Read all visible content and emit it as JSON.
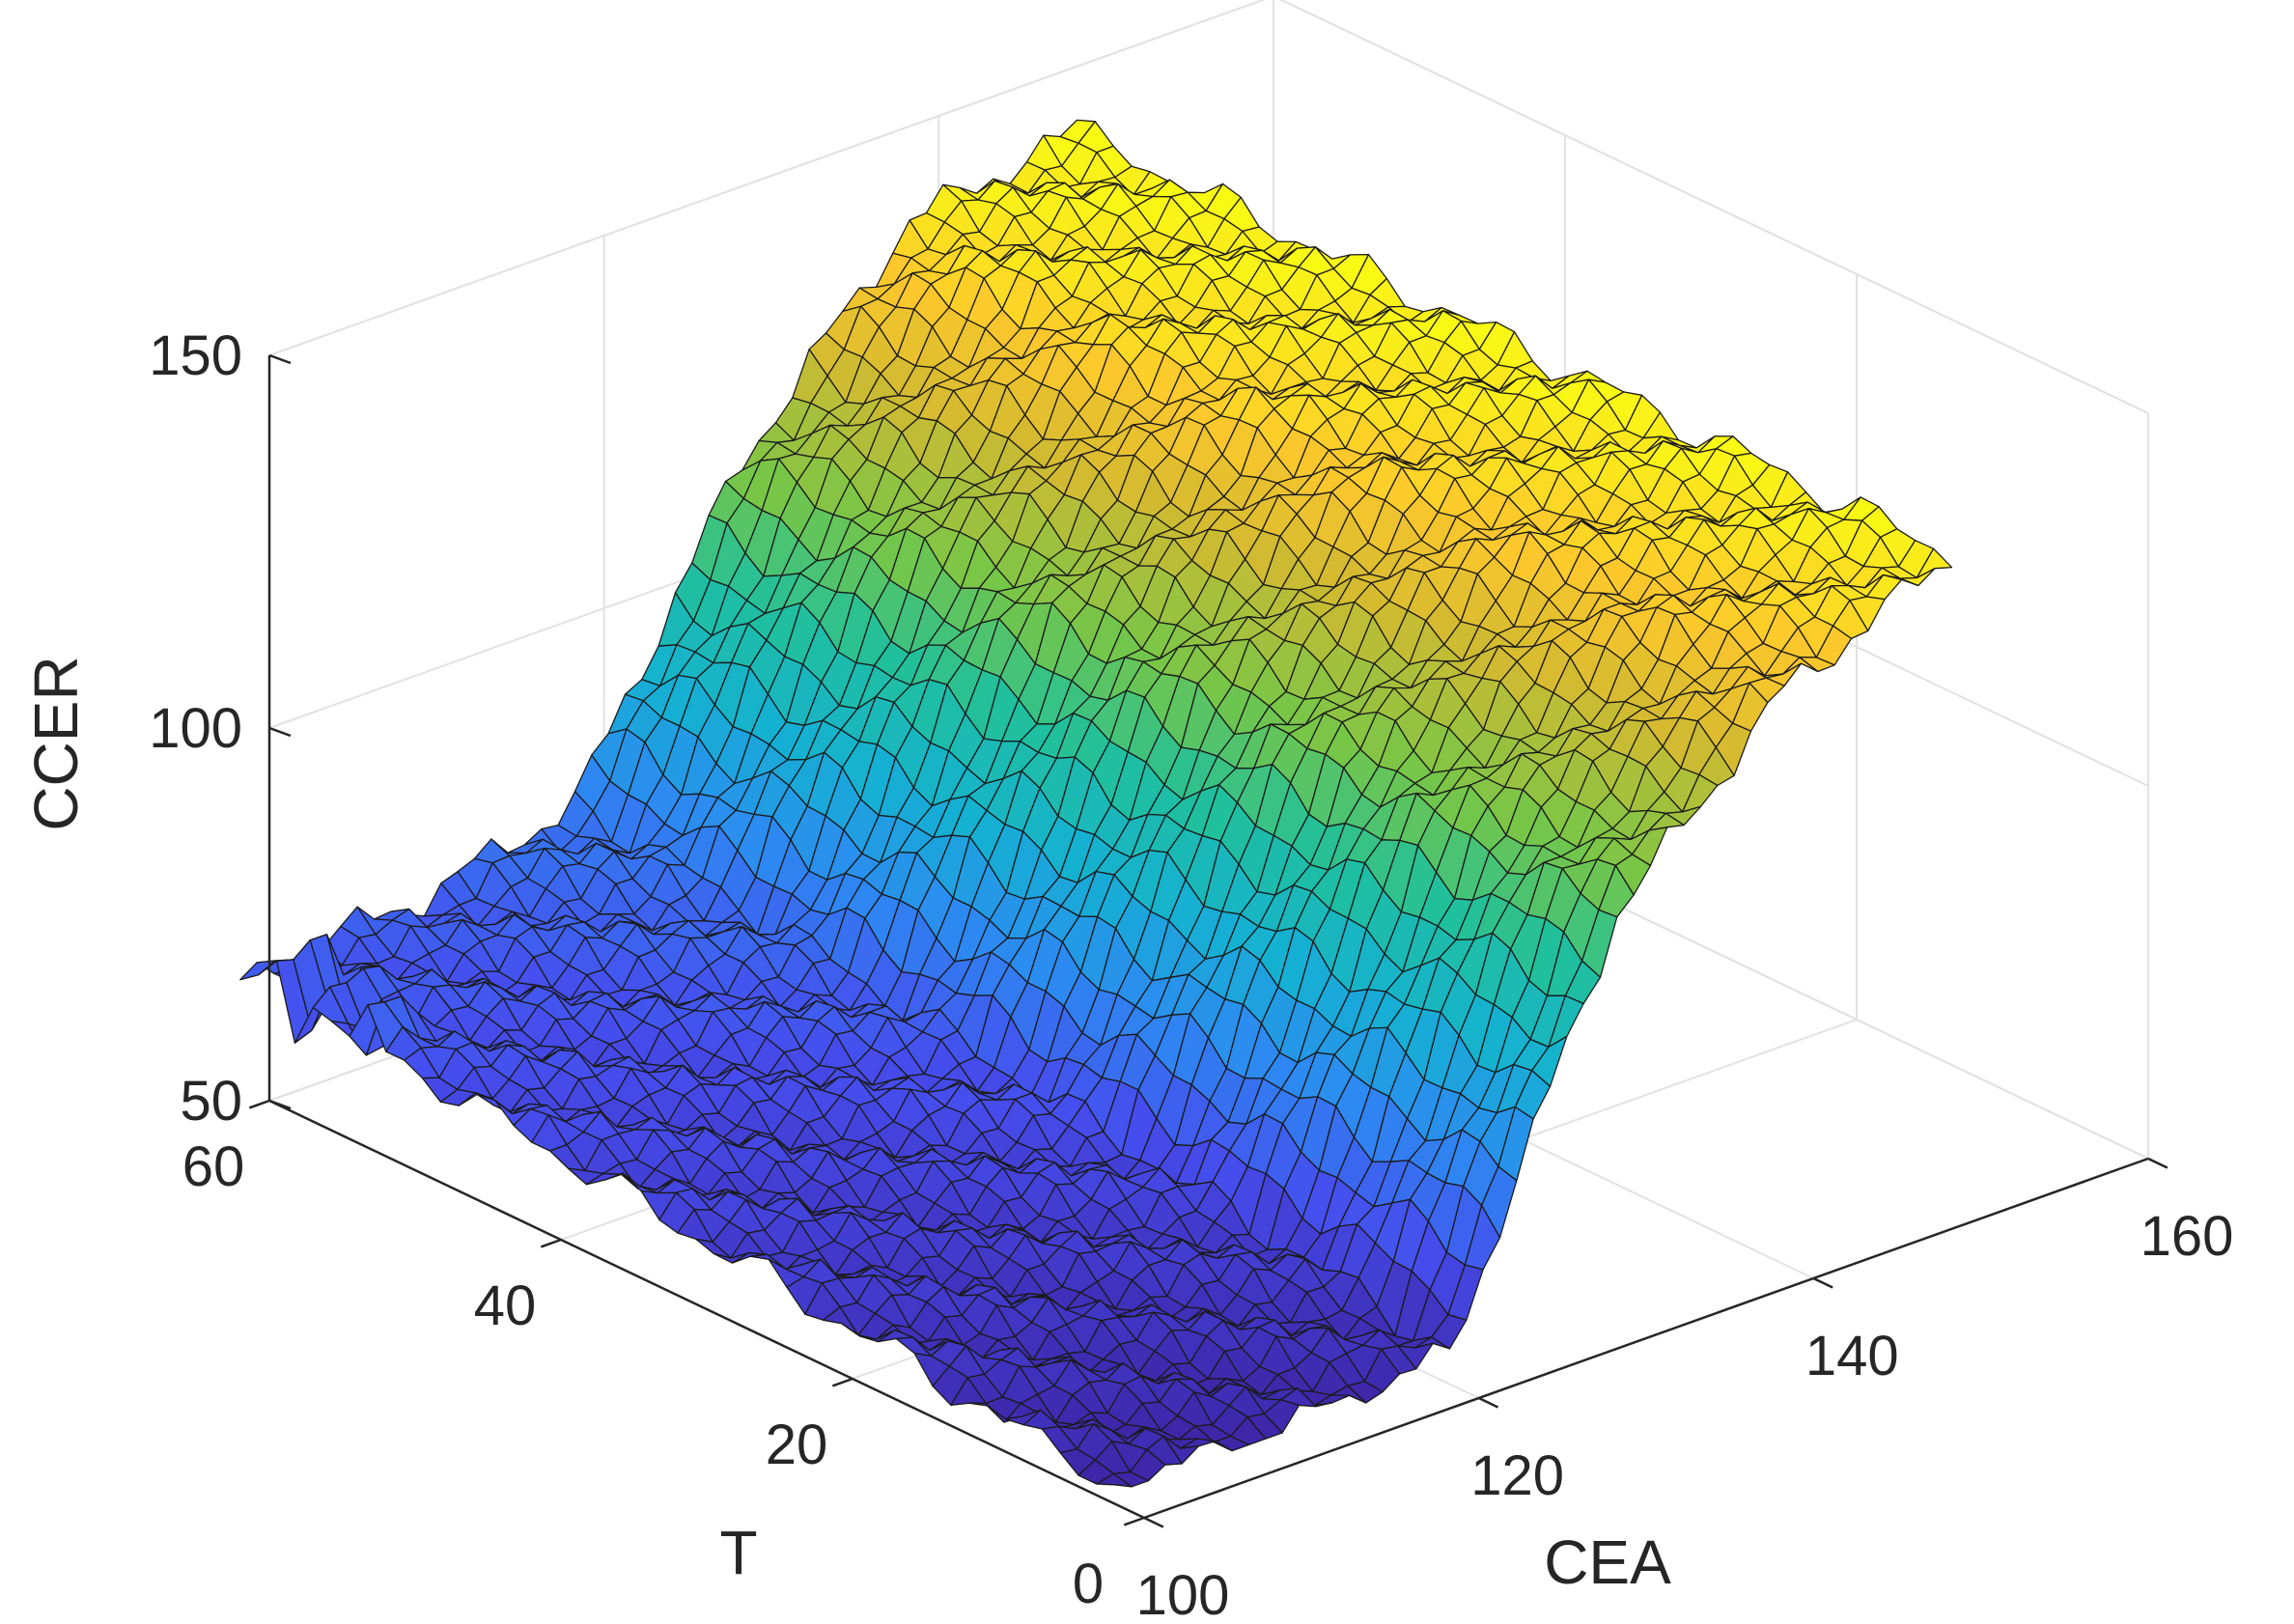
{
  "chart_data": {
    "type": "surface",
    "xlabel": "CEA",
    "ylabel": "T",
    "zlabel": "CCER",
    "xlim": [
      100,
      160
    ],
    "ylim": [
      0,
      60
    ],
    "zlim": [
      50,
      150
    ],
    "xticks": [
      "100",
      "120",
      "140",
      "160"
    ],
    "yticks": [
      "0",
      "20",
      "40",
      "60"
    ],
    "zticks": [
      "50",
      "100",
      "150"
    ],
    "surface_extent": {
      "cea": [
        100,
        150
      ],
      "t": [
        2,
        62
      ]
    },
    "surface_profile": {
      "ccer_at_t60_by_cea": {
        "cea": [
          100,
          110,
          120,
          130,
          140,
          150
        ],
        "ccer": [
          66,
          66,
          72,
          110,
          134,
          138
        ]
      },
      "ccer_low_t_by_cea": {
        "cea": [
          100,
          110,
          120,
          130,
          140,
          150
        ],
        "ccer": [
          52,
          52,
          54,
          105,
          127,
          137
        ]
      },
      "ccer_at_cea150": 137
    },
    "colormap": "parula",
    "grid": true
  }
}
